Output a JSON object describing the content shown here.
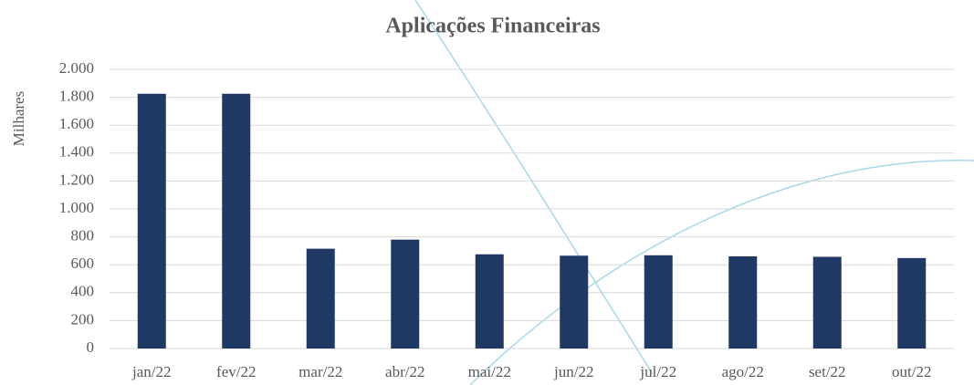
{
  "chart_data": {
    "type": "bar",
    "title": "Aplicações Financeiras",
    "y_label": "Milhares",
    "categories": [
      "jan/22",
      "fev/22",
      "mar/22",
      "abr/22",
      "mai/22",
      "jun/22",
      "jul/22",
      "ago/22",
      "set/22",
      "out/22"
    ],
    "values": [
      1825,
      1825,
      715,
      780,
      675,
      665,
      668,
      660,
      657,
      648
    ],
    "color": "#1f3864",
    "ylim": [
      0,
      2000
    ],
    "yticks": [
      0,
      200,
      400,
      600,
      {
        "value": 800,
        "label": "800"
      },
      {
        "value": 1000,
        "label": "1.000"
      },
      {
        "value": 1200,
        "label": "1.200"
      },
      {
        "value": 1400,
        "label": "1.400"
      },
      {
        "value": 1600,
        "label": "1.600"
      },
      {
        "value": 1800,
        "label": "1.800"
      },
      {
        "value": 2000,
        "label": "2.000"
      }
    ],
    "grid": true
  }
}
